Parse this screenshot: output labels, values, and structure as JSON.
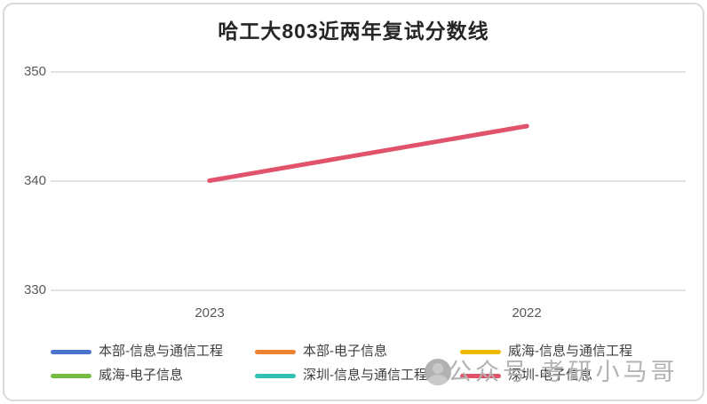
{
  "title": "哈工大803近两年复试分数线",
  "chart_data": {
    "type": "line",
    "title": "哈工大803近两年复试分数线",
    "categories": [
      "2023",
      "2022"
    ],
    "series": [
      {
        "name": "本部-信息与通信工程",
        "color": "#4874CB",
        "values": [
          null,
          null
        ]
      },
      {
        "name": "本部-电子信息",
        "color": "#EE822F",
        "values": [
          null,
          null
        ]
      },
      {
        "name": "威海-信息与通信工程",
        "color": "#F2BA02",
        "values": [
          null,
          null
        ]
      },
      {
        "name": "威海-电子信息",
        "color": "#75BD42",
        "values": [
          null,
          null
        ]
      },
      {
        "name": "深圳-信息与通信工程",
        "color": "#30C0B4",
        "values": [
          null,
          null
        ]
      },
      {
        "name": "深圳-电子信息",
        "color": "#E0536A",
        "values": [
          340,
          345
        ]
      }
    ],
    "yticks": [
      "350",
      "340",
      "330"
    ],
    "ylim": [
      330,
      350
    ],
    "grid": true,
    "legend_position": "bottom"
  },
  "watermark": {
    "text": "公众号 考研小马哥",
    "icon": "person-avatar"
  },
  "colors": {
    "gridline": "#e3e3e3",
    "axis_text": "#595959",
    "legend_text": "#3f3f3f",
    "border": "#d9d9d9",
    "watermark": "#b3b3b3"
  }
}
